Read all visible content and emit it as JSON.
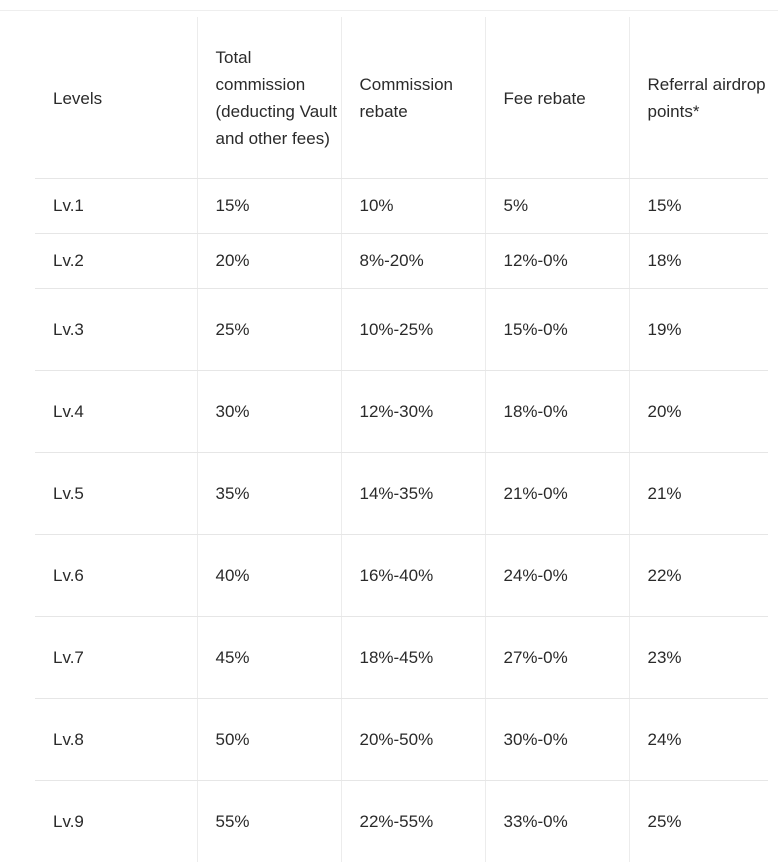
{
  "table": {
    "headers": [
      "Levels",
      "Total commission (deducting Vault and other fees)",
      "Commission rebate",
      "Fee rebate",
      "Referral airdrop points*"
    ],
    "rows": [
      [
        "Lv.1",
        "15%",
        "10%",
        "5%",
        "15%"
      ],
      [
        "Lv.2",
        "20%",
        "8%-20%",
        "12%-0%",
        "18%"
      ],
      [
        "Lv.3",
        "25%",
        "10%-25%",
        "15%-0%",
        "19%"
      ],
      [
        "Lv.4",
        "30%",
        "12%-30%",
        "18%-0%",
        "20%"
      ],
      [
        "Lv.5",
        "35%",
        "14%-35%",
        "21%-0%",
        "21%"
      ],
      [
        "Lv.6",
        "40%",
        "16%-40%",
        "24%-0%",
        "22%"
      ],
      [
        "Lv.7",
        "45%",
        "18%-45%",
        "27%-0%",
        "23%"
      ],
      [
        "Lv.8",
        "50%",
        "20%-50%",
        "30%-0%",
        "24%"
      ],
      [
        "Lv.9",
        "55%",
        "22%-55%",
        "33%-0%",
        "25%"
      ]
    ]
  }
}
